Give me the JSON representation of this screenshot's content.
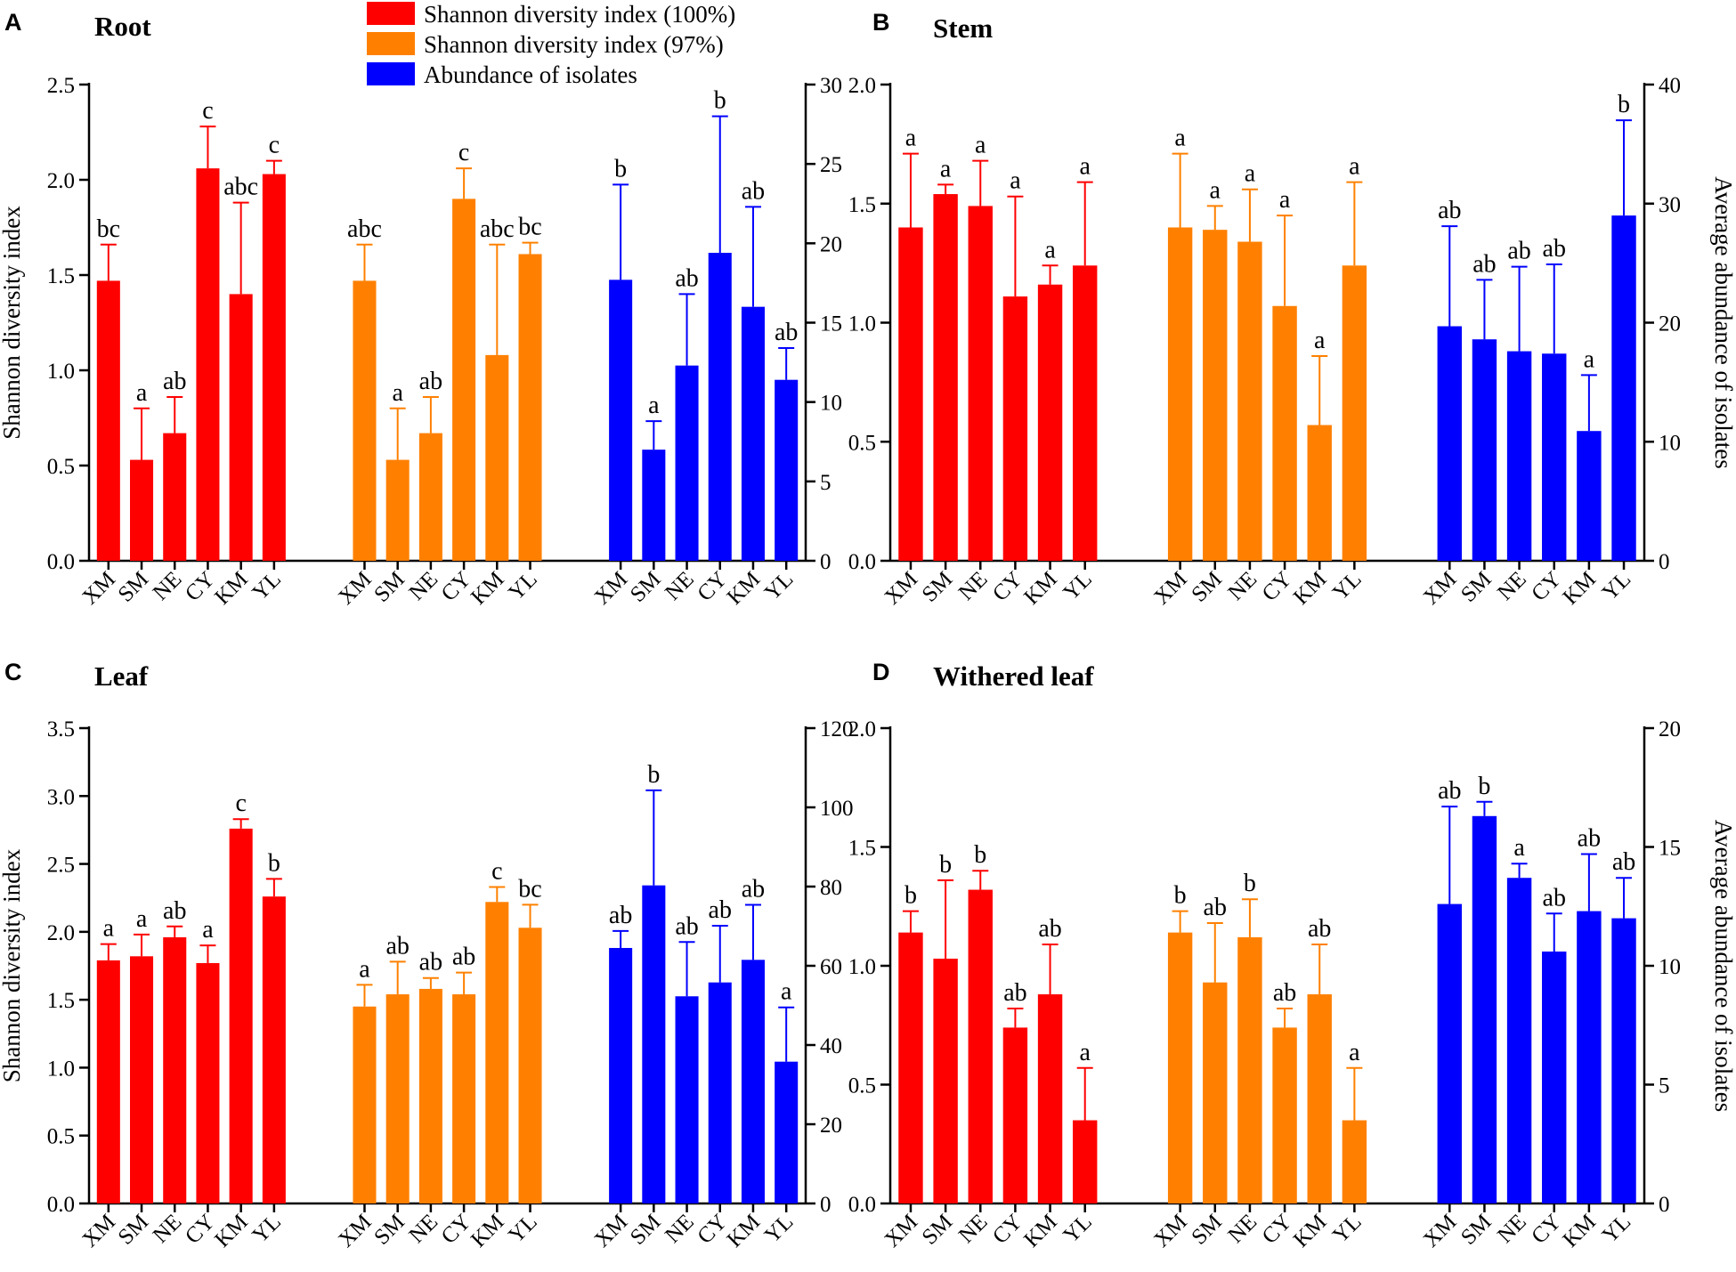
{
  "legend": {
    "entries": [
      {
        "label": "Shannon diversity index (100%)",
        "color": "#ff0000"
      },
      {
        "label": "Shannon diversity index (97%)",
        "color": "#ff8000"
      },
      {
        "label": "Abundance of isolates",
        "color": "#0000ff"
      }
    ]
  },
  "chart_data": [
    {
      "panel_letter": "A",
      "title": "Root",
      "type": "bar",
      "categories": [
        "XM",
        "SM",
        "NE",
        "CY",
        "KM",
        "YL"
      ],
      "ylabel": "Shannon diversity index",
      "y2label": "",
      "ylim": [
        0,
        2.5
      ],
      "yticks": [
        "0.0",
        "0.5",
        "1.0",
        "1.5",
        "2.0",
        "2.5"
      ],
      "y2lim": [
        0,
        30
      ],
      "y2ticks": [
        "0",
        "5",
        "10",
        "15",
        "20",
        "25",
        "30"
      ],
      "series": [
        {
          "name": "Shannon diversity index (100%)",
          "color": "#ff0000",
          "axis": "left",
          "values": [
            1.47,
            0.53,
            0.67,
            2.06,
            1.4,
            2.03
          ],
          "errors": [
            0.19,
            0.27,
            0.19,
            0.22,
            0.48,
            0.07
          ],
          "labels": [
            "bc",
            "a",
            "ab",
            "c",
            "abc",
            "c"
          ]
        },
        {
          "name": "Shannon diversity index (97%)",
          "color": "#ff8000",
          "axis": "left",
          "values": [
            1.47,
            0.53,
            0.67,
            1.9,
            1.08,
            1.61
          ],
          "errors": [
            0.19,
            0.27,
            0.19,
            0.16,
            0.58,
            0.06
          ],
          "labels": [
            "abc",
            "a",
            "ab",
            "c",
            "abc",
            "bc"
          ]
        },
        {
          "name": "Abundance of isolates",
          "color": "#0000ff",
          "axis": "right",
          "values": [
            17.7,
            7.0,
            12.3,
            19.4,
            16.0,
            11.4
          ],
          "errors": [
            6.0,
            1.8,
            4.5,
            8.6,
            6.3,
            2.0
          ],
          "labels": [
            "b",
            "a",
            "ab",
            "b",
            "ab",
            "ab"
          ]
        }
      ]
    },
    {
      "panel_letter": "B",
      "title": "Stem",
      "type": "bar",
      "categories": [
        "XM",
        "SM",
        "NE",
        "CY",
        "KM",
        "YL"
      ],
      "ylabel": "",
      "y2label": "Average abundance of isolates",
      "ylim": [
        0,
        2.0
      ],
      "yticks": [
        "0.0",
        "0.5",
        "1.0",
        "1.5",
        "2.0"
      ],
      "y2lim": [
        0,
        40
      ],
      "y2ticks": [
        "0",
        "10",
        "20",
        "30",
        "40"
      ],
      "series": [
        {
          "name": "Shannon diversity index (100%)",
          "color": "#ff0000",
          "axis": "left",
          "values": [
            1.4,
            1.54,
            1.49,
            1.11,
            1.16,
            1.24
          ],
          "errors": [
            0.31,
            0.04,
            0.19,
            0.42,
            0.08,
            0.35
          ],
          "labels": [
            "a",
            "a",
            "a",
            "a",
            "a",
            "a"
          ]
        },
        {
          "name": "Shannon diversity index (97%)",
          "color": "#ff8000",
          "axis": "left",
          "values": [
            1.4,
            1.39,
            1.34,
            1.07,
            0.57,
            1.24
          ],
          "errors": [
            0.31,
            0.1,
            0.22,
            0.38,
            0.29,
            0.35
          ],
          "labels": [
            "a",
            "a",
            "a",
            "a",
            "a",
            "a"
          ]
        },
        {
          "name": "Abundance of isolates",
          "color": "#0000ff",
          "axis": "right",
          "values": [
            19.7,
            18.6,
            17.6,
            17.4,
            10.9,
            29.0
          ],
          "errors": [
            8.4,
            5.0,
            7.1,
            7.5,
            4.7,
            8.0
          ],
          "labels": [
            "ab",
            "ab",
            "ab",
            "ab",
            "a",
            "b"
          ]
        }
      ]
    },
    {
      "panel_letter": "C",
      "title": "Leaf",
      "type": "bar",
      "categories": [
        "XM",
        "SM",
        "NE",
        "CY",
        "KM",
        "YL"
      ],
      "ylabel": "Shannon diversity index",
      "y2label": "",
      "ylim": [
        0,
        3.5
      ],
      "yticks": [
        "0.0",
        "0.5",
        "1.0",
        "1.5",
        "2.0",
        "2.5",
        "3.0",
        "3.5"
      ],
      "y2lim": [
        0,
        120
      ],
      "y2ticks": [
        "0",
        "20",
        "40",
        "60",
        "80",
        "100",
        "120"
      ],
      "series": [
        {
          "name": "Shannon diversity index (100%)",
          "color": "#ff0000",
          "axis": "left",
          "values": [
            1.79,
            1.82,
            1.96,
            1.77,
            2.76,
            2.26
          ],
          "errors": [
            0.12,
            0.16,
            0.08,
            0.13,
            0.07,
            0.13
          ],
          "labels": [
            "a",
            "a",
            "ab",
            "a",
            "c",
            "b"
          ]
        },
        {
          "name": "Shannon diversity index (97%)",
          "color": "#ff8000",
          "axis": "left",
          "values": [
            1.45,
            1.54,
            1.58,
            1.54,
            2.22,
            2.03
          ],
          "errors": [
            0.16,
            0.24,
            0.08,
            0.16,
            0.11,
            0.17
          ],
          "labels": [
            "a",
            "ab",
            "ab",
            "ab",
            "c",
            "bc"
          ]
        },
        {
          "name": "Abundance of isolates",
          "color": "#0000ff",
          "axis": "right",
          "values": [
            64.5,
            80.3,
            52.3,
            55.8,
            61.5,
            35.8
          ],
          "errors": [
            4.3,
            24.0,
            13.7,
            14.3,
            13.9,
            13.7
          ],
          "labels": [
            "ab",
            "b",
            "ab",
            "ab",
            "ab",
            "a"
          ]
        }
      ]
    },
    {
      "panel_letter": "D",
      "title": "Withered leaf",
      "type": "bar",
      "categories": [
        "XM",
        "SM",
        "NE",
        "CY",
        "KM",
        "YL"
      ],
      "ylabel": "",
      "y2label": "Average abundance of isolates",
      "ylim": [
        0,
        2.0
      ],
      "yticks": [
        "0.0",
        "0.5",
        "1.0",
        "1.5",
        "2.0"
      ],
      "y2lim": [
        0,
        20
      ],
      "y2ticks": [
        "0",
        "5",
        "10",
        "15",
        "20"
      ],
      "series": [
        {
          "name": "Shannon diversity index (100%)",
          "color": "#ff0000",
          "axis": "left",
          "values": [
            1.14,
            1.03,
            1.32,
            0.74,
            0.88,
            0.35
          ],
          "errors": [
            0.09,
            0.33,
            0.08,
            0.08,
            0.21,
            0.22
          ],
          "labels": [
            "b",
            "b",
            "b",
            "ab",
            "ab",
            "a"
          ]
        },
        {
          "name": "Shannon diversity index (97%)",
          "color": "#ff8000",
          "axis": "left",
          "values": [
            1.14,
            0.93,
            1.12,
            0.74,
            0.88,
            0.35
          ],
          "errors": [
            0.09,
            0.25,
            0.16,
            0.08,
            0.21,
            0.22
          ],
          "labels": [
            "b",
            "ab",
            "b",
            "ab",
            "ab",
            "a"
          ]
        },
        {
          "name": "Abundance of isolates",
          "color": "#0000ff",
          "axis": "right",
          "values": [
            12.6,
            16.3,
            13.7,
            10.6,
            12.3,
            12.0
          ],
          "errors": [
            4.1,
            0.6,
            0.6,
            1.6,
            2.4,
            1.7
          ],
          "labels": [
            "ab",
            "b",
            "a",
            "ab",
            "ab",
            "ab"
          ]
        }
      ]
    }
  ]
}
